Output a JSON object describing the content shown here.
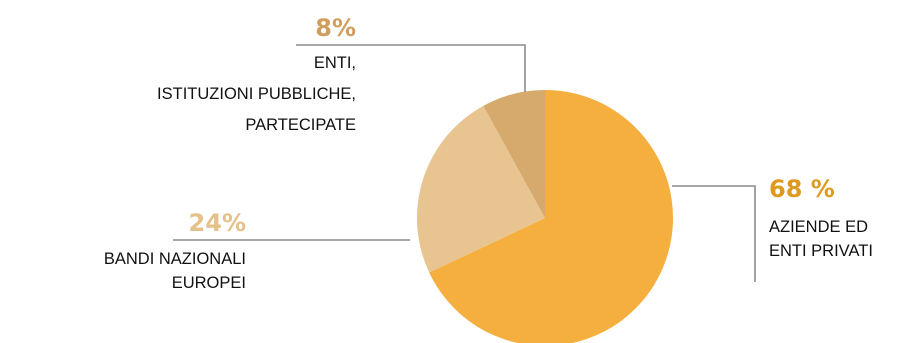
{
  "chart_data": {
    "type": "pie",
    "slices": [
      {
        "value": 68,
        "percent_label": "68 %",
        "label_lines": [
          "AZIENDE ED",
          "ENTI PRIVATI"
        ],
        "color": "#F5AF3F",
        "label_color": "#DE9A1F"
      },
      {
        "value": 24,
        "percent_label": "24%",
        "label_lines": [
          "BANDI NAZIONALI",
          "EUROPEI"
        ],
        "color": "#E8C490",
        "label_color": "#E4C189"
      },
      {
        "value": 8,
        "percent_label": "8%",
        "label_lines": [
          "ENTI,",
          "ISTITUZIONI PUBBLICHE,",
          "PARTECIPATE"
        ],
        "color": "#D6A96C",
        "label_color": "#CF9E5C"
      }
    ],
    "start_angle_deg": 0,
    "direction": "clockwise",
    "leader_line_color": "#8C8C8C"
  }
}
